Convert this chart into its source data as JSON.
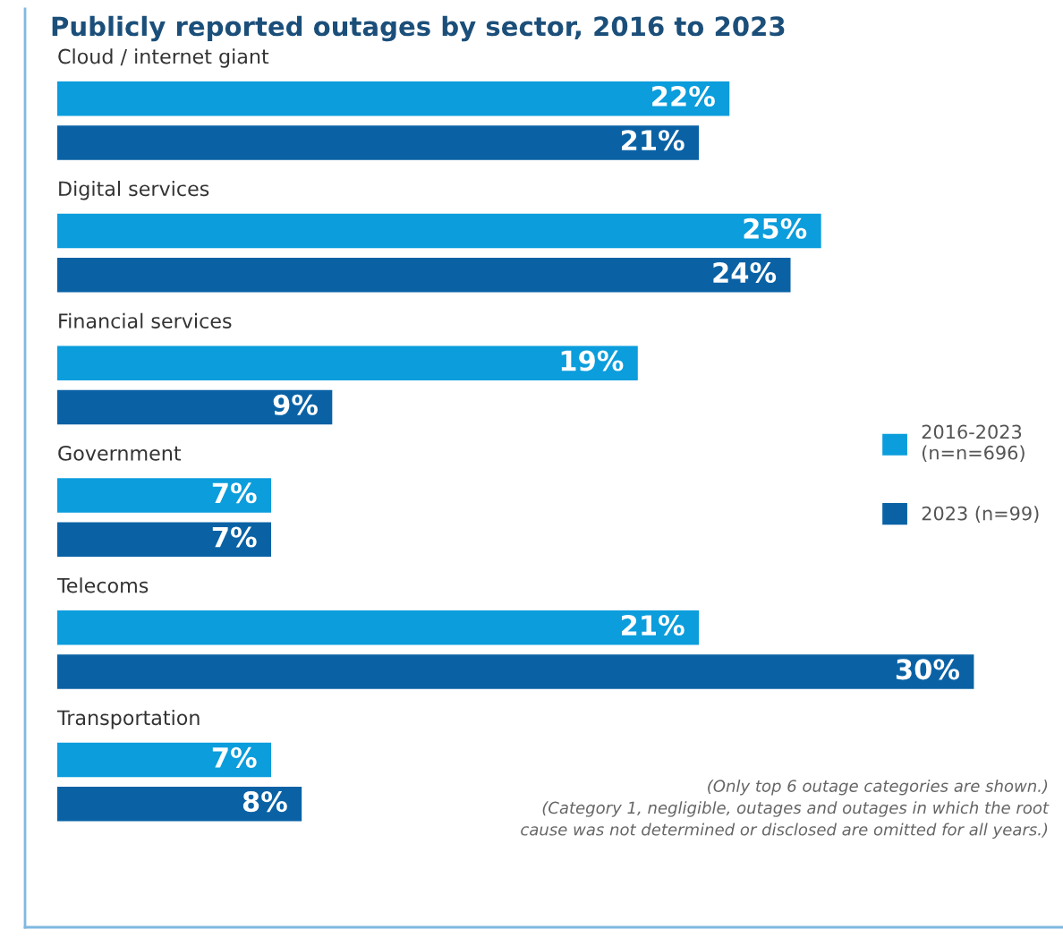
{
  "chart_data": {
    "type": "bar",
    "orientation": "horizontal",
    "title": "Publicly reported outages by sector, 2016 to 2023",
    "categories": [
      "Cloud / internet giant",
      "Digital services",
      "Financial services",
      "Government",
      "Telecoms",
      "Transportation"
    ],
    "series": [
      {
        "name": "2016-2023\n(n=n=696)",
        "color": "#0b9ddc",
        "values": [
          22,
          25,
          19,
          7,
          21,
          7
        ],
        "value_labels": [
          "22%",
          "25%",
          "19%",
          "7%",
          "21%",
          "7%"
        ]
      },
      {
        "name": "2023 (n=99)",
        "color": "#0a62a5",
        "values": [
          21,
          24,
          9,
          7,
          30,
          8
        ],
        "value_labels": [
          "21%",
          "24%",
          "9%",
          "7%",
          "30%",
          "8%"
        ]
      }
    ],
    "tick_labels": false,
    "legend": "right",
    "annotations": [
      "(Only top 6 outage categories are shown.)\n(Category 1, negligible, outages and outages in which the root\ncause was not determined or disclosed are omitted for all years.)"
    ]
  }
}
